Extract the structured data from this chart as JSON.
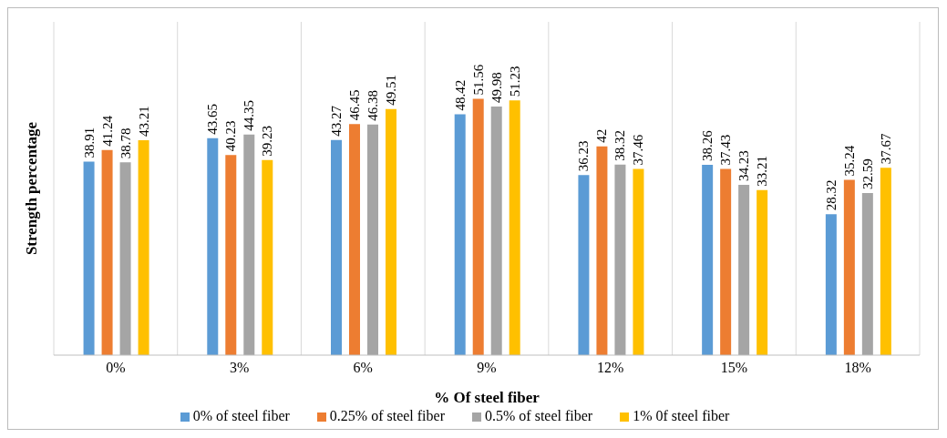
{
  "chart_data": {
    "type": "bar",
    "xlabel": "% Of steel fiber",
    "ylabel": "Strength percentage",
    "categories": [
      "0%",
      "3%",
      "6%",
      "9%",
      "12%",
      "15%",
      "18%"
    ],
    "series": [
      {
        "name": "0% of steel fiber",
        "color": "#5b9bd5",
        "values": [
          38.91,
          43.65,
          43.27,
          48.42,
          36.23,
          38.26,
          28.32
        ]
      },
      {
        "name": "0.25% of steel fiber",
        "color": "#ed7d31",
        "values": [
          41.24,
          40.23,
          46.45,
          51.56,
          42,
          37.43,
          35.24
        ]
      },
      {
        "name": "0.5% of steel fiber",
        "color": "#a5a5a5",
        "values": [
          38.78,
          44.35,
          46.38,
          49.98,
          38.32,
          34.23,
          32.59
        ]
      },
      {
        "name": "1% 0f steel fiber",
        "color": "#ffc000",
        "values": [
          43.21,
          39.23,
          49.51,
          51.23,
          37.46,
          33.21,
          37.67
        ]
      }
    ],
    "data_labels": true,
    "grid": "x",
    "legend": "bottom"
  }
}
